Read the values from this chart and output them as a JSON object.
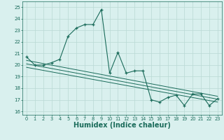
{
  "xlabel": "Humidex (Indice chaleur)",
  "xlim": [
    -0.5,
    23.5
  ],
  "ylim": [
    15.7,
    25.5
  ],
  "yticks": [
    16,
    17,
    18,
    19,
    20,
    21,
    22,
    23,
    24,
    25
  ],
  "xticks": [
    0,
    1,
    2,
    3,
    4,
    5,
    6,
    7,
    8,
    9,
    10,
    11,
    12,
    13,
    14,
    15,
    16,
    17,
    18,
    19,
    20,
    21,
    22,
    23
  ],
  "main_line_x": [
    0,
    1,
    2,
    3,
    4,
    5,
    6,
    7,
    8,
    9,
    10,
    11,
    12,
    13,
    14,
    15,
    16,
    17,
    18,
    19,
    20,
    21,
    22,
    23
  ],
  "main_line_y": [
    20.7,
    20.0,
    20.0,
    20.2,
    20.5,
    22.5,
    23.2,
    23.5,
    23.5,
    24.8,
    19.3,
    21.1,
    19.3,
    19.5,
    19.5,
    17.0,
    16.8,
    17.2,
    17.4,
    16.5,
    17.5,
    17.5,
    16.5,
    17.1
  ],
  "trend_line1_x": [
    0,
    23
  ],
  "trend_line1_y": [
    20.4,
    17.3
  ],
  "trend_line2_x": [
    0,
    23
  ],
  "trend_line2_y": [
    20.1,
    17.05
  ],
  "trend_line3_x": [
    0,
    23
  ],
  "trend_line3_y": [
    19.8,
    16.8
  ],
  "line_color": "#1a6b5a",
  "bg_color": "#d9f0ee",
  "grid_color": "#b8d8d4",
  "tick_fontsize": 5.0,
  "xlabel_fontsize": 7.0
}
